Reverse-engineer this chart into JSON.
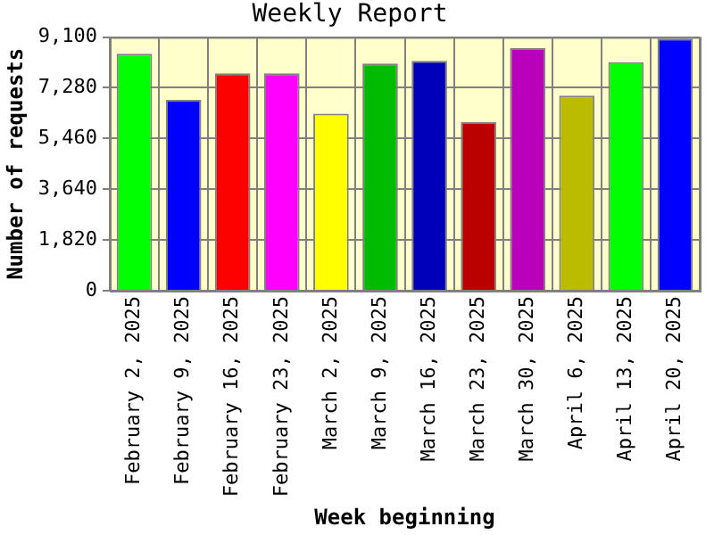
{
  "chart_data": {
    "type": "bar",
    "title": "Weekly Report",
    "xlabel": "Week beginning",
    "ylabel": "Number of requests",
    "categories": [
      "February 2, 2025",
      "February 9, 2025",
      "February 16, 2025",
      "February 23, 2025",
      "March 2, 2025",
      "March 9, 2025",
      "March 16, 2025",
      "March 23, 2025",
      "March 30, 2025",
      "April 6, 2025",
      "April 13, 2025",
      "April 20, 2025"
    ],
    "values": [
      8500,
      6850,
      7800,
      7800,
      6350,
      8150,
      8250,
      6050,
      8700,
      7000,
      8200,
      9050
    ],
    "colors": [
      "#00ff00",
      "#0000ff",
      "#ff0000",
      "#ff00ff",
      "#ffff00",
      "#00bb00",
      "#0000bb",
      "#bb0000",
      "#bb00bb",
      "#bbbb00",
      "#00ff00",
      "#0000ff"
    ],
    "ylim": [
      0,
      9100
    ],
    "yticks": [
      0,
      {
        "value": 1820,
        "label": "1,820"
      },
      {
        "value": 3640,
        "label": "3,640"
      },
      {
        "value": 5460,
        "label": "5,460"
      },
      {
        "value": 7280,
        "label": "7,280"
      },
      {
        "value": 9100,
        "label": "9,100"
      }
    ],
    "grid": true
  }
}
